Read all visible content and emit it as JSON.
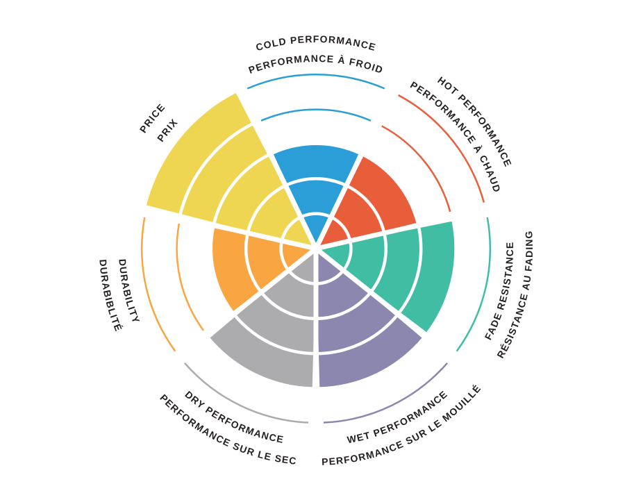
{
  "chart_data": {
    "type": "rose",
    "description": "Brake pad performance rating wheel, 7 criteria rated on 5 concentric levels; unfilled levels shown as thin colored arcs",
    "max_level": 5,
    "background": "#FFFFFF",
    "text_color": "#231F20",
    "divider_color": "#FFFFFF",
    "segments": [
      {
        "id": "cold-performance",
        "label_outer": "COLD PERFORMANCE",
        "label_inner": "PERFORMANCE À FROID",
        "value": 3,
        "color": "#2B9ED7"
      },
      {
        "id": "hot-performance",
        "label_outer": "HOT PERFORMANCE",
        "label_inner": "PERFORMANCE À CHAUD",
        "value": 3,
        "color": "#E85D3A"
      },
      {
        "id": "fade-resistance",
        "label_outer": "RÉSISTANCE AU FADING",
        "label_inner": "FADE RESISTANCE",
        "value": 4,
        "color": "#41BDA4"
      },
      {
        "id": "wet-performance",
        "label_outer": "PERFORMANCE SUR LE MOUILLÉ",
        "label_inner": "WET PERFORMANCE",
        "value": 4,
        "color": "#8B87AF"
      },
      {
        "id": "dry-performance",
        "label_outer": "PERFORMANCE SUR LE SEC",
        "label_inner": "DRY PERFORMANCE",
        "value": 4,
        "color": "#ACABAD"
      },
      {
        "id": "durability",
        "label_outer": "DURABIBLITÉ",
        "label_inner": "DURABILITY",
        "value": 3,
        "color": "#F9A642"
      },
      {
        "id": "price",
        "label_outer": "PRICE",
        "label_inner": "PRIX",
        "value": 5,
        "color": "#EFD652"
      }
    ]
  }
}
